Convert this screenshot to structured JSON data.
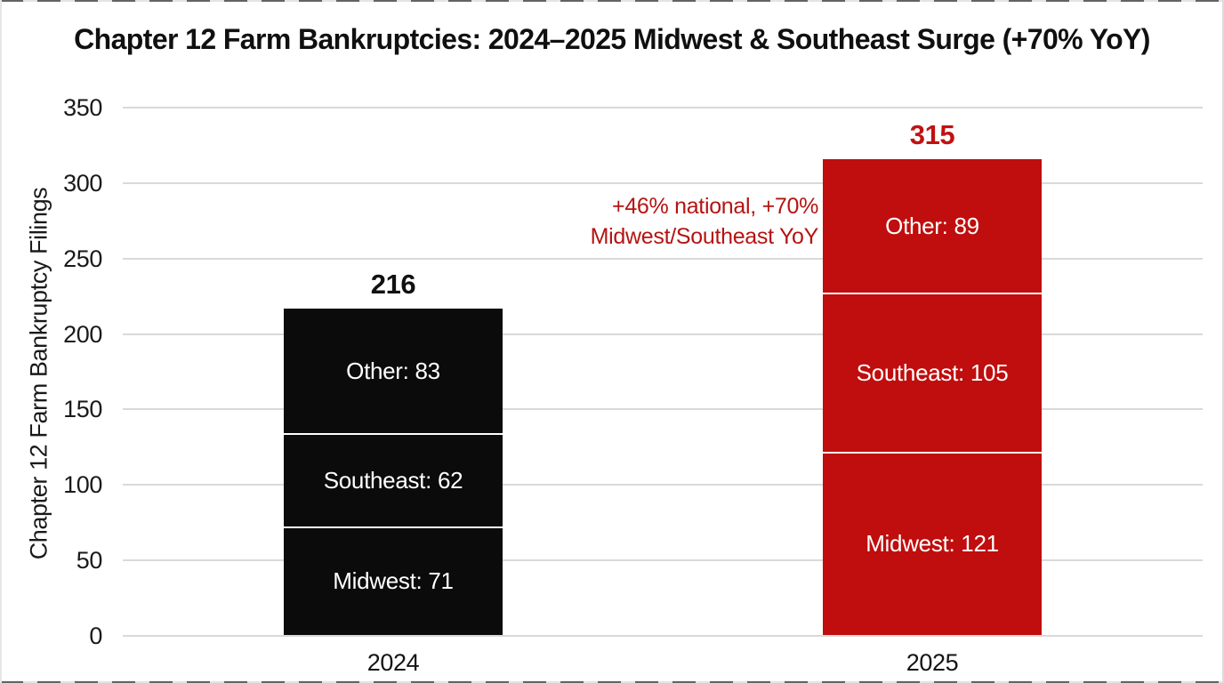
{
  "chart_data": {
    "type": "bar",
    "subtype": "stacked",
    "title": "Chapter 12 Farm Bankruptcies: 2024–2025 Midwest & Southeast Surge (+70% YoY)",
    "ylabel": "Chapter 12 Farm Bankruptcy Filings",
    "xlabel": "",
    "categories": [
      "2024",
      "2025"
    ],
    "series": [
      {
        "name": "Midwest",
        "values": [
          71,
          121
        ]
      },
      {
        "name": "Southeast",
        "values": [
          62,
          105
        ]
      },
      {
        "name": "Other",
        "values": [
          83,
          89
        ]
      }
    ],
    "stack_order_bottom_to_top": [
      "Midwest",
      "Southeast",
      "Other"
    ],
    "totals": [
      216,
      315
    ],
    "segment_label_format": "{name}: {value}",
    "ylim": [
      0,
      350
    ],
    "yticks": [
      0,
      50,
      100,
      150,
      200,
      250,
      300,
      350
    ],
    "grid": "horizontal",
    "legend": "none",
    "annotation": {
      "lines": [
        "+46% national, +70%",
        "Midwest/Southeast YoY"
      ]
    },
    "colors": {
      "bar_2024": "#0b0b0b",
      "bar_2025": "#c00d0d",
      "total_2024": "#111111",
      "total_2025": "#c21111",
      "annotation": "#b41412",
      "gridline": "#d9d9d9",
      "axis_text": "#1a1a1a",
      "segment_label": "#ffffff",
      "separator": "#ffffff"
    }
  }
}
